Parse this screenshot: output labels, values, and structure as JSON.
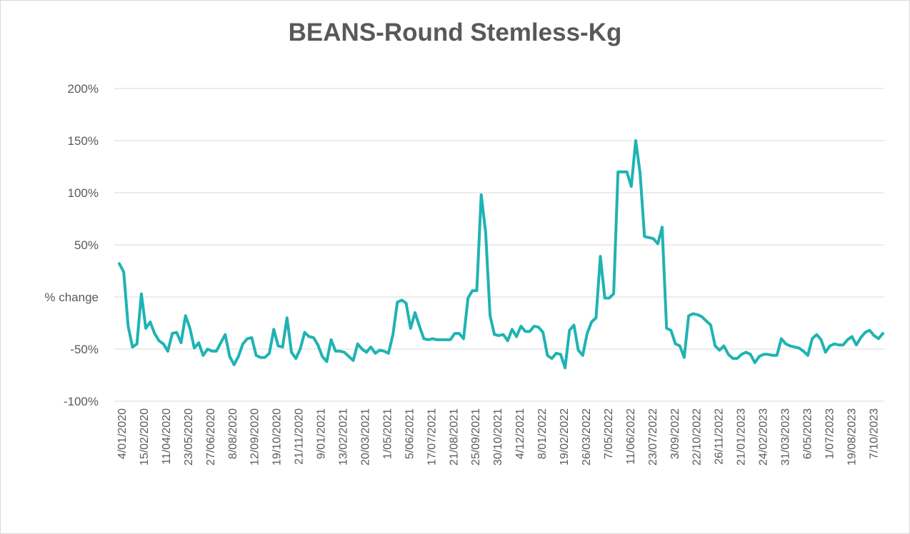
{
  "chart_data": {
    "type": "line",
    "title": "BEANS-Round Stemless-Kg",
    "ylabel": "% change",
    "xlabel": "",
    "ylim": [
      -100,
      200
    ],
    "y_tick_labels": [
      "-100%",
      "-50%",
      "% change",
      "50%",
      "100%",
      "150%",
      "200%"
    ],
    "y_tick_values": [
      -100,
      -50,
      0,
      50,
      100,
      150,
      200
    ],
    "x_tick_labels": [
      "4/01/2020",
      "15/02/2020",
      "11/04/2020",
      "23/05/2020",
      "27/06/2020",
      "8/08/2020",
      "12/09/2020",
      "19/10/2020",
      "21/11/2020",
      "9/01/2021",
      "13/02/2021",
      "20/03/2021",
      "1/05/2021",
      "5/06/2021",
      "17/07/2021",
      "21/08/2021",
      "25/09/2021",
      "30/10/2021",
      "4/12/2021",
      "8/01/2022",
      "19/02/2022",
      "26/03/2022",
      "7/05/2022",
      "11/06/2022",
      "23/07/2022",
      "3/09/2022",
      "22/10/2022",
      "26/11/2022",
      "21/01/2023",
      "24/02/2023",
      "31/03/2023",
      "6/05/2023",
      "1/07/2023",
      "19/08/2023",
      "7/10/2023"
    ],
    "grid": true,
    "legend": "none",
    "series": [
      {
        "color": "#1fb3b3",
        "values": [
          32,
          24,
          -28,
          -48,
          -45,
          3,
          -30,
          -24,
          -35,
          -42,
          -45,
          -52,
          -35,
          -34,
          -44,
          -18,
          -30,
          -49,
          -44,
          -56,
          -50,
          -52,
          -52,
          -44,
          -36,
          -57,
          -65,
          -57,
          -45,
          -40,
          -39,
          -56,
          -58,
          -58,
          -54,
          -31,
          -47,
          -48,
          -20,
          -53,
          -59,
          -50,
          -34,
          -38,
          -39,
          -46,
          -57,
          -62,
          -41,
          -52,
          -52,
          -53,
          -57,
          -61,
          -45,
          -50,
          -53,
          -48,
          -54,
          -51,
          -52,
          -54,
          -36,
          -5,
          -3,
          -6,
          -30,
          -15,
          -28,
          -40,
          -41,
          -40,
          -41,
          -41,
          -41,
          -41,
          -35,
          -35,
          -40,
          -1,
          6,
          6,
          98,
          62,
          -18,
          -36,
          -37,
          -36,
          -42,
          -31,
          -38,
          -28,
          -33,
          -33,
          -28,
          -29,
          -34,
          -56,
          -59,
          -54,
          -55,
          -68,
          -32,
          -27,
          -51,
          -56,
          -35,
          -24,
          -20,
          39,
          -1,
          -1,
          3,
          120,
          120,
          120,
          106,
          150,
          119,
          58,
          57,
          56,
          51,
          67,
          -30,
          -32,
          -45,
          -47,
          -58,
          -18,
          -16,
          -17,
          -19,
          -23,
          -27,
          -47,
          -51,
          -47,
          -55,
          -59,
          -59,
          -55,
          -53,
          -55,
          -63,
          -57,
          -55,
          -55,
          -56,
          -56,
          -40,
          -45,
          -47,
          -48,
          -49,
          -52,
          -56,
          -40,
          -36,
          -41,
          -53,
          -47,
          -45,
          -46,
          -46,
          -41,
          -38,
          -46,
          -39,
          -34,
          -32,
          -37,
          -40,
          -35
        ]
      }
    ]
  }
}
